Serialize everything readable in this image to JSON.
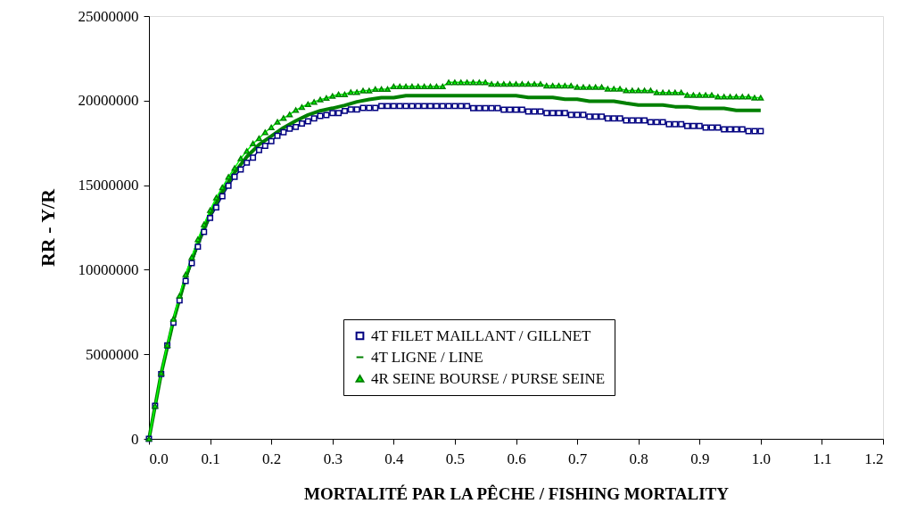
{
  "chart_data": {
    "type": "line",
    "xlabel": "MORTALITÉ PAR LA PÊCHE / FISHING MORTALITY",
    "ylabel": "RR  - Y/R",
    "xlim": [
      0,
      1.2
    ],
    "xticks": [
      {
        "value": 0,
        "label": "0.0"
      },
      0.1,
      0.2,
      0.3,
      0.4,
      0.5,
      0.6,
      0.7,
      0.8,
      0.9,
      {
        "value": 1,
        "label": "1.0"
      },
      1.1,
      1.2
    ],
    "ylim": [
      0,
      25000000
    ],
    "yticks": [
      0,
      5000000,
      10000000,
      15000000,
      20000000,
      25000000
    ],
    "grid": false,
    "legend": "bottom right",
    "series": [
      {
        "name": "4T FILET MAILLANT / GILLNET",
        "color": "#000080",
        "marker": "square",
        "x": [
          0,
          0.01,
          0.02,
          0.03,
          0.04,
          0.05,
          0.06,
          0.07,
          0.08,
          0.09,
          0.1,
          0.11,
          0.12,
          0.13,
          0.14,
          0.15,
          0.16,
          0.17,
          0.18,
          0.19,
          0.2,
          0.21,
          0.22,
          0.23,
          0.24,
          0.25,
          0.26,
          0.27,
          0.28,
          0.29,
          0.3,
          0.31,
          0.32,
          0.33,
          0.34,
          0.35,
          0.36,
          0.37,
          0.38,
          0.39,
          0.4,
          0.41,
          0.42,
          0.43,
          0.44,
          0.45,
          0.46,
          0.47,
          0.48,
          0.49,
          0.5,
          0.51,
          0.52,
          0.53,
          0.54,
          0.55,
          0.56,
          0.57,
          0.58,
          0.59,
          0.6,
          0.61,
          0.62,
          0.63,
          0.64,
          0.65,
          0.66,
          0.67,
          0.68,
          0.69,
          0.7,
          0.71,
          0.72,
          0.73,
          0.74,
          0.75,
          0.76,
          0.77,
          0.78,
          0.79,
          0.8,
          0.81,
          0.82,
          0.83,
          0.84,
          0.85,
          0.86,
          0.87,
          0.88,
          0.89,
          0.9,
          0.91,
          0.92,
          0.93,
          0.94,
          0.95,
          0.96,
          0.97,
          0.98,
          0.99,
          1.0
        ],
        "values": [
          0,
          1950000,
          3830000,
          5520000,
          6870000,
          8190000,
          9340000,
          10390000,
          11360000,
          12240000,
          13060000,
          13680000,
          14350000,
          14960000,
          15490000,
          15930000,
          16330000,
          16630000,
          17070000,
          17330000,
          17600000,
          17920000,
          18130000,
          18340000,
          18440000,
          18650000,
          18780000,
          18950000,
          19090000,
          19150000,
          19270000,
          19270000,
          19390000,
          19480000,
          19480000,
          19570000,
          19570000,
          19570000,
          19680000,
          19680000,
          19680000,
          19680000,
          19680000,
          19680000,
          19680000,
          19680000,
          19680000,
          19680000,
          19680000,
          19680000,
          19680000,
          19680000,
          19680000,
          19550000,
          19550000,
          19550000,
          19550000,
          19550000,
          19460000,
          19460000,
          19460000,
          19460000,
          19360000,
          19360000,
          19360000,
          19260000,
          19260000,
          19260000,
          19260000,
          19160000,
          19160000,
          19160000,
          19050000,
          19050000,
          19050000,
          18950000,
          18950000,
          18950000,
          18830000,
          18830000,
          18830000,
          18830000,
          18730000,
          18730000,
          18730000,
          18600000,
          18600000,
          18600000,
          18500000,
          18500000,
          18500000,
          18410000,
          18410000,
          18410000,
          18300000,
          18300000,
          18300000,
          18300000,
          18200000,
          18200000,
          18200000
        ]
      },
      {
        "name": "4T LIGNE / LINE",
        "color": "#008000",
        "marker": "none",
        "x": [
          0,
          0.02,
          0.04,
          0.06,
          0.08,
          0.1,
          0.12,
          0.14,
          0.16,
          0.18,
          0.2,
          0.22,
          0.24,
          0.26,
          0.28,
          0.3,
          0.32,
          0.34,
          0.36,
          0.38,
          0.4,
          0.42,
          0.44,
          0.46,
          0.48,
          0.5,
          0.52,
          0.54,
          0.56,
          0.58,
          0.6,
          0.62,
          0.64,
          0.66,
          0.68,
          0.7,
          0.72,
          0.74,
          0.76,
          0.78,
          0.8,
          0.82,
          0.84,
          0.86,
          0.88,
          0.9,
          0.92,
          0.94,
          0.96,
          0.98,
          1.0
        ],
        "values": [
          0,
          3860000,
          6980000,
          9530000,
          11580000,
          13290000,
          14610000,
          15750000,
          16680000,
          17400000,
          17900000,
          18400000,
          18800000,
          19150000,
          19400000,
          19550000,
          19720000,
          19930000,
          20070000,
          20170000,
          20170000,
          20290000,
          20290000,
          20290000,
          20290000,
          20290000,
          20290000,
          20290000,
          20290000,
          20290000,
          20290000,
          20190000,
          20190000,
          20190000,
          20080000,
          20080000,
          19960000,
          19960000,
          19960000,
          19840000,
          19740000,
          19740000,
          19740000,
          19640000,
          19640000,
          19540000,
          19540000,
          19540000,
          19420000,
          19420000,
          19420000
        ]
      },
      {
        "name": "4R SEINE BOURSE / PURSE SEINE",
        "color": "#00ff00",
        "marker": "triangle",
        "x": [
          0,
          0.01,
          0.02,
          0.03,
          0.04,
          0.05,
          0.06,
          0.07,
          0.08,
          0.09,
          0.1,
          0.11,
          0.12,
          0.13,
          0.14,
          0.15,
          0.16,
          0.17,
          0.18,
          0.19,
          0.2,
          0.21,
          0.22,
          0.23,
          0.24,
          0.25,
          0.26,
          0.27,
          0.28,
          0.29,
          0.3,
          0.31,
          0.32,
          0.33,
          0.34,
          0.35,
          0.36,
          0.37,
          0.38,
          0.39,
          0.4,
          0.41,
          0.42,
          0.43,
          0.44,
          0.45,
          0.46,
          0.47,
          0.48,
          0.49,
          0.5,
          0.51,
          0.52,
          0.53,
          0.54,
          0.55,
          0.56,
          0.57,
          0.58,
          0.59,
          0.6,
          0.61,
          0.62,
          0.63,
          0.64,
          0.65,
          0.66,
          0.67,
          0.68,
          0.69,
          0.7,
          0.71,
          0.72,
          0.73,
          0.74,
          0.75,
          0.76,
          0.77,
          0.78,
          0.79,
          0.8,
          0.81,
          0.82,
          0.83,
          0.84,
          0.85,
          0.86,
          0.87,
          0.88,
          0.89,
          0.9,
          0.91,
          0.92,
          0.93,
          0.94,
          0.95,
          0.96,
          0.97,
          0.98,
          0.99,
          1.0
        ],
        "values": [
          0,
          1950000,
          3890000,
          5550000,
          7090000,
          8460000,
          9720000,
          10740000,
          11800000,
          12680000,
          13520000,
          14260000,
          14870000,
          15490000,
          16010000,
          16580000,
          17020000,
          17460000,
          17770000,
          18130000,
          18420000,
          18740000,
          18970000,
          19180000,
          19440000,
          19620000,
          19790000,
          19920000,
          20060000,
          20150000,
          20270000,
          20370000,
          20370000,
          20500000,
          20500000,
          20590000,
          20590000,
          20680000,
          20680000,
          20680000,
          20840000,
          20840000,
          20840000,
          20840000,
          20840000,
          20840000,
          20840000,
          20840000,
          20840000,
          21080000,
          21080000,
          21080000,
          21080000,
          21080000,
          21080000,
          21080000,
          20980000,
          20980000,
          20980000,
          20980000,
          20980000,
          20980000,
          20980000,
          20980000,
          20980000,
          20880000,
          20880000,
          20880000,
          20880000,
          20880000,
          20800000,
          20800000,
          20800000,
          20800000,
          20800000,
          20700000,
          20700000,
          20700000,
          20600000,
          20600000,
          20600000,
          20600000,
          20600000,
          20480000,
          20480000,
          20480000,
          20480000,
          20480000,
          20330000,
          20330000,
          20330000,
          20330000,
          20330000,
          20230000,
          20230000,
          20230000,
          20230000,
          20230000,
          20230000,
          20170000,
          20170000
        ]
      }
    ]
  }
}
